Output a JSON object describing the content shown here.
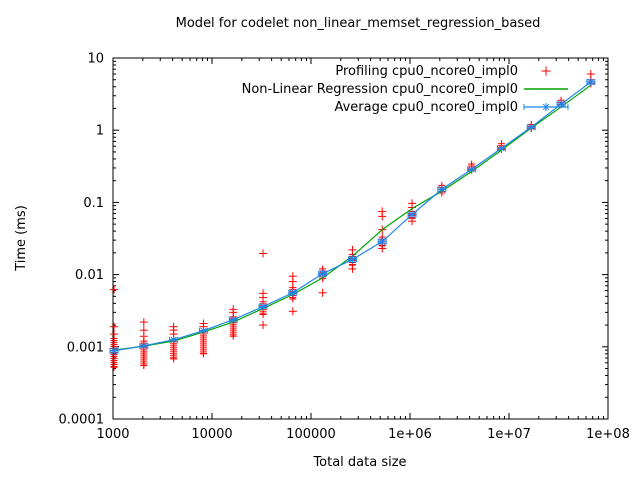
{
  "window": {
    "background": "#ffffff",
    "foreground": "#000000"
  },
  "chart_data": {
    "type": "scatter",
    "title": "Model for codelet non_linear_memset_regression_based",
    "xlabel": "Total data size",
    "ylabel": "Time (ms)",
    "x_scale": "log",
    "y_scale": "log",
    "xlim": [
      1000,
      100000000
    ],
    "ylim": [
      0.0001,
      10
    ],
    "x_ticks": [
      "1000",
      "10000",
      "100000",
      "1e+06",
      "1e+07",
      "1e+08"
    ],
    "y_ticks": [
      "10",
      "1",
      "0.1",
      "0.01",
      "0.001",
      "0.0001"
    ],
    "grid": false,
    "legend_position": "top-right-inside",
    "sizes": [
      1024,
      2048,
      4096,
      8192,
      16384,
      32768,
      65536,
      131072,
      262144,
      524288,
      1048576,
      2097152,
      4194304,
      8388608,
      16777216,
      33554432,
      67108864
    ],
    "series": [
      {
        "name": "Profiling cpu0_ncore0_impl0",
        "role": "profiling-samples",
        "marker": "plus",
        "color": "#ff0000",
        "clusters": [
          {
            "size": 1024,
            "dense": [
              0.00052,
              0.0013
            ],
            "outliers": [
              0.0015,
              0.0019,
              0.0062
            ]
          },
          {
            "size": 2048,
            "dense": [
              0.00055,
              0.0012
            ],
            "outliers": [
              0.0014,
              0.0017,
              0.0022
            ]
          },
          {
            "size": 4096,
            "dense": [
              0.00068,
              0.00125
            ],
            "outliers": [
              0.0015,
              0.0017,
              0.0019
            ]
          },
          {
            "size": 8192,
            "dense": [
              0.0008,
              0.00165
            ],
            "outliers": [
              0.0019,
              0.0021
            ]
          },
          {
            "size": 16384,
            "dense": [
              0.0014,
              0.0026
            ],
            "outliers": [
              0.003,
              0.0033
            ]
          },
          {
            "size": 32768,
            "dense": [
              0.0028,
              0.0042
            ],
            "outliers": [
              0.0048,
              0.0055,
              0.0196,
              0.002
            ]
          },
          {
            "size": 65536,
            "dense": [
              0.0046,
              0.0066
            ],
            "outliers": [
              0.008,
              0.0095,
              0.0031
            ]
          },
          {
            "size": 131072,
            "dense": [
              0.0088,
              0.012
            ],
            "outliers": [
              0.0056
            ]
          },
          {
            "size": 262144,
            "dense": [
              0.0135,
              0.019
            ],
            "outliers": [
              0.022,
              0.012
            ]
          },
          {
            "size": 524288,
            "dense": [
              0.025,
              0.033
            ],
            "outliers": [
              0.042,
              0.064,
              0.075,
              0.023
            ]
          },
          {
            "size": 1048576,
            "dense": [
              0.06,
              0.075
            ],
            "outliers": [
              0.085,
              0.097,
              0.055
            ]
          },
          {
            "size": 2097152,
            "dense": [
              0.135,
              0.172
            ],
            "outliers": []
          },
          {
            "size": 4194304,
            "dense": [
              0.28,
              0.34
            ],
            "outliers": []
          },
          {
            "size": 8388608,
            "dense": [
              0.54,
              0.65
            ],
            "outliers": []
          },
          {
            "size": 16777216,
            "dense": [
              1.05,
              1.2
            ],
            "outliers": []
          },
          {
            "size": 33554432,
            "dense": [
              2.25,
              2.6
            ],
            "outliers": []
          },
          {
            "size": 67108864,
            "dense": [
              4.4,
              5.0
            ],
            "outliers": [
              6.0
            ]
          }
        ]
      },
      {
        "name": "Non-Linear Regression cpu0_ncore0_impl0",
        "role": "regression-line",
        "marker": "none",
        "color": "#00a400",
        "x": [
          1024,
          2048,
          4096,
          8192,
          16384,
          32768,
          65536,
          131072,
          262144,
          524288,
          1048576,
          2097152,
          4194304,
          8388608,
          16777216,
          33554432,
          67108864
        ],
        "values": [
          0.0009,
          0.00102,
          0.0012,
          0.0016,
          0.0022,
          0.0034,
          0.0053,
          0.009,
          0.018,
          0.042,
          0.082,
          0.143,
          0.268,
          0.53,
          1.07,
          2.1,
          4.2
        ]
      },
      {
        "name": "Average cpu0_ncore0_impl0",
        "role": "average-line",
        "marker": "asterisk-with-xerrorbars",
        "color": "#1c86ee",
        "x": [
          1024,
          2048,
          4096,
          8192,
          16384,
          32768,
          65536,
          131072,
          262144,
          524288,
          1048576,
          2097152,
          4194304,
          8388608,
          16777216,
          33554432,
          67108864
        ],
        "values": [
          0.00088,
          0.00103,
          0.00125,
          0.00167,
          0.00237,
          0.0036,
          0.0056,
          0.0103,
          0.0162,
          0.0287,
          0.068,
          0.152,
          0.287,
          0.562,
          1.1,
          2.3,
          4.64
        ]
      }
    ]
  }
}
